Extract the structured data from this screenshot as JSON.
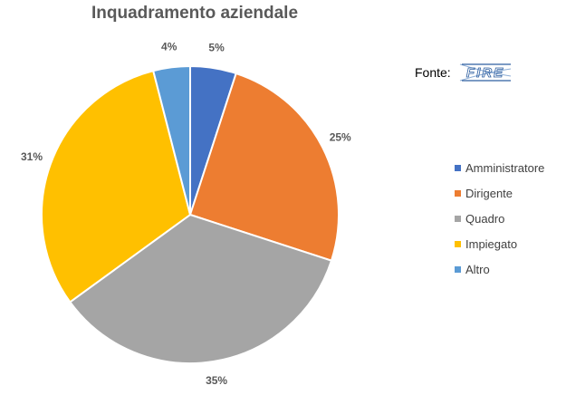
{
  "chart_data": {
    "type": "pie",
    "title": "Inquadramento aziendale",
    "categories": [
      "Amministratore",
      "Dirigente",
      "Quadro",
      "Impiegato",
      "Altro"
    ],
    "values": [
      5,
      25,
      35,
      31,
      4
    ],
    "labels": [
      "5%",
      "25%",
      "35%",
      "31%",
      "4%"
    ],
    "colors": [
      "#4472c4",
      "#ed7d31",
      "#a5a5a5",
      "#ffc000",
      "#5b9bd5"
    ],
    "legend_position": "right",
    "start_angle": "12 o'clock",
    "direction": "clockwise"
  },
  "source": {
    "label": "Fonte:",
    "logo_text": "FIRE"
  }
}
